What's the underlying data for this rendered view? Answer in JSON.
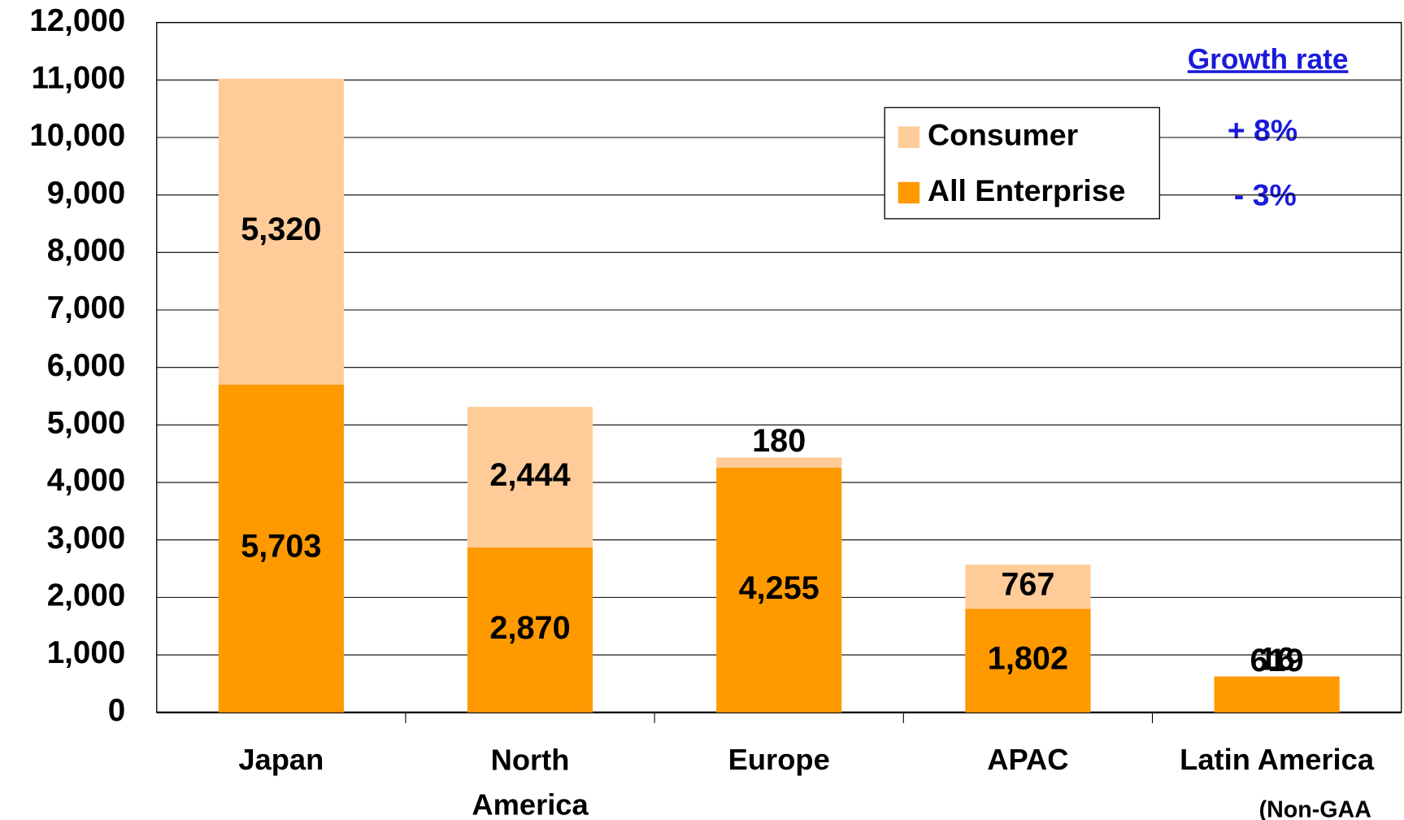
{
  "chart_data": {
    "type": "stacked_bar",
    "categories": [
      "Japan",
      "North America",
      "Europe",
      "APAC",
      "Latin America"
    ],
    "series": [
      {
        "name": "All Enterprise",
        "color": "#ff9900",
        "values": [
          5703,
          2870,
          4255,
          1802,
          619
        ],
        "value_labels": [
          "5,703",
          "2,870",
          "4,255",
          "1,802",
          "619"
        ]
      },
      {
        "name": "Consumer",
        "color": "#ffcc99",
        "values": [
          5320,
          2444,
          180,
          767,
          16
        ],
        "value_labels": [
          "5,320",
          "2,444",
          "180",
          "767",
          "16"
        ]
      }
    ],
    "ylim": [
      0,
      12000
    ],
    "yticks": [
      0,
      {
        "value": 1000,
        "label": "1,000"
      },
      {
        "value": 2000,
        "label": "2,000"
      },
      {
        "value": 3000,
        "label": "3,000"
      },
      {
        "value": 4000,
        "label": "4,000"
      },
      {
        "value": 5000,
        "label": "5,000"
      },
      {
        "value": 6000,
        "label": "6,000"
      },
      {
        "value": 7000,
        "label": "7,000"
      },
      {
        "value": 8000,
        "label": "8,000"
      },
      {
        "value": 9000,
        "label": "9,000"
      },
      {
        "value": 10000,
        "label": "10,000"
      },
      {
        "value": 11000,
        "label": "11,000"
      },
      {
        "value": 12000,
        "label": "12,000"
      }
    ],
    "grid": true,
    "legend": "upper right",
    "annotations": {
      "growth_title": "Growth rate",
      "consumer_growth": "+ 8%",
      "enterprise_growth": "- 3%",
      "note": "(Non-GAA"
    }
  }
}
